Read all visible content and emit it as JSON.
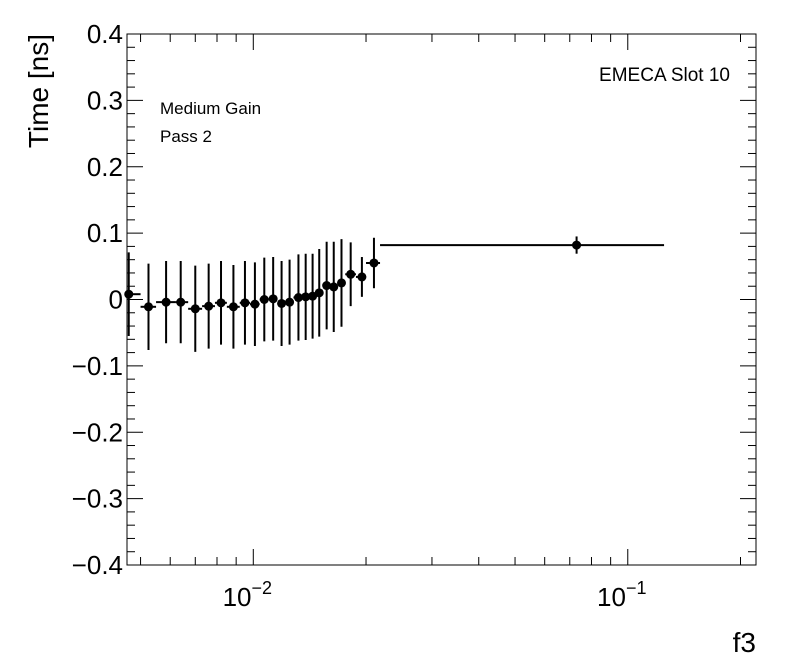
{
  "chart_data": {
    "type": "scatter",
    "xscale": "log",
    "xlabel": "f3",
    "ylabel": "Time [ns]",
    "xlim": [
      0.0046,
      0.22
    ],
    "ylim": [
      -0.4,
      0.4
    ],
    "y_ticks": [
      -0.4,
      -0.3,
      -0.2,
      -0.1,
      0,
      0.1,
      0.2,
      0.3,
      0.4
    ],
    "y_tick_labels": [
      "−0.4",
      "−0.3",
      "−0.2",
      "−0.1",
      "0",
      "0.1",
      "0.2",
      "0.3",
      "0.4"
    ],
    "x_major_ticks": [
      {
        "value": 0.01,
        "base": "10",
        "exp": "−2"
      },
      {
        "value": 0.1,
        "base": "10",
        "exp": "−1"
      }
    ],
    "annotations": {
      "top_right": "EMECA Slot 10",
      "top_left_line1": "Medium Gain",
      "top_left_line2": "Pass 2"
    },
    "series": [
      {
        "name": "Time vs f3",
        "points": [
          {
            "x": 0.00465,
            "y": 0.008,
            "xlo": 0.0046,
            "xhi": 0.005,
            "err": 0.063
          },
          {
            "x": 0.00525,
            "y": -0.011,
            "xlo": 0.005,
            "xhi": 0.0055,
            "err": 0.065
          },
          {
            "x": 0.00585,
            "y": -0.004,
            "xlo": 0.0055,
            "xhi": 0.0062,
            "err": 0.062
          },
          {
            "x": 0.0064,
            "y": -0.004,
            "xlo": 0.0062,
            "xhi": 0.0067,
            "err": 0.062
          },
          {
            "x": 0.007,
            "y": -0.014,
            "xlo": 0.0067,
            "xhi": 0.0073,
            "err": 0.065
          },
          {
            "x": 0.0076,
            "y": -0.01,
            "xlo": 0.0073,
            "xhi": 0.0079,
            "err": 0.064
          },
          {
            "x": 0.0082,
            "y": -0.005,
            "xlo": 0.0079,
            "xhi": 0.0085,
            "err": 0.063
          },
          {
            "x": 0.00885,
            "y": -0.011,
            "xlo": 0.0085,
            "xhi": 0.0092,
            "err": 0.063
          },
          {
            "x": 0.0095,
            "y": -0.005,
            "xlo": 0.0092,
            "xhi": 0.0098,
            "err": 0.063
          },
          {
            "x": 0.0101,
            "y": -0.007,
            "xlo": 0.0098,
            "xhi": 0.0104,
            "err": 0.063
          },
          {
            "x": 0.0107,
            "y": 0.0,
            "xlo": 0.0104,
            "xhi": 0.011,
            "err": 0.063
          },
          {
            "x": 0.0113,
            "y": 0.001,
            "xlo": 0.011,
            "xhi": 0.0116,
            "err": 0.063
          },
          {
            "x": 0.0119,
            "y": -0.006,
            "xlo": 0.0116,
            "xhi": 0.0122,
            "err": 0.064
          },
          {
            "x": 0.0125,
            "y": -0.004,
            "xlo": 0.0122,
            "xhi": 0.0128,
            "err": 0.064
          },
          {
            "x": 0.0132,
            "y": 0.003,
            "xlo": 0.0128,
            "xhi": 0.0135,
            "err": 0.065
          },
          {
            "x": 0.0138,
            "y": 0.004,
            "xlo": 0.0135,
            "xhi": 0.0141,
            "err": 0.065
          },
          {
            "x": 0.0144,
            "y": 0.005,
            "xlo": 0.0141,
            "xhi": 0.0147,
            "err": 0.064
          },
          {
            "x": 0.015,
            "y": 0.01,
            "xlo": 0.0147,
            "xhi": 0.0153,
            "err": 0.066
          },
          {
            "x": 0.0157,
            "y": 0.021,
            "xlo": 0.0153,
            "xhi": 0.016,
            "err": 0.066
          },
          {
            "x": 0.0164,
            "y": 0.019,
            "xlo": 0.016,
            "xhi": 0.0168,
            "err": 0.068
          },
          {
            "x": 0.0172,
            "y": 0.025,
            "xlo": 0.0168,
            "xhi": 0.0176,
            "err": 0.066
          },
          {
            "x": 0.0182,
            "y": 0.038,
            "xlo": 0.0176,
            "xhi": 0.0188,
            "err": 0.048
          },
          {
            "x": 0.0195,
            "y": 0.034,
            "xlo": 0.0188,
            "xhi": 0.02,
            "err": 0.03
          },
          {
            "x": 0.021,
            "y": 0.055,
            "xlo": 0.02,
            "xhi": 0.0218,
            "err": 0.038
          },
          {
            "x": 0.073,
            "y": 0.082,
            "xlo": 0.0218,
            "xhi": 0.125,
            "err": 0.013
          }
        ]
      }
    ]
  }
}
